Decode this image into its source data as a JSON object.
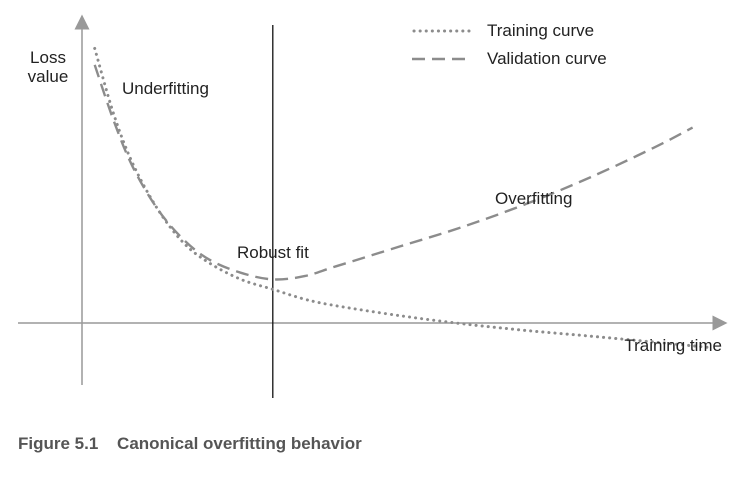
{
  "chart_data": {
    "type": "line",
    "title": "",
    "xlabel": "Training time",
    "ylabel": "Loss value",
    "x_range": [
      0,
      100
    ],
    "y_range": [
      -10,
      100
    ],
    "grid": false,
    "legend_position": "top-right",
    "series": [
      {
        "name": "Training curve",
        "style": "dotted",
        "color": "#8c8c8c",
        "x": [
          2,
          5,
          8,
          12,
          16,
          20,
          25,
          30,
          35,
          40,
          50,
          60,
          70,
          80,
          90,
          99
        ],
        "y": [
          92,
          72,
          57,
          43,
          33,
          27,
          22,
          19,
          16,
          14,
          11,
          8.5,
          6.5,
          4.8,
          3,
          1.3
        ]
      },
      {
        "name": "Validation curve",
        "style": "dashed",
        "color": "#8c8c8c",
        "x": [
          2,
          5,
          8,
          12,
          16,
          20,
          25,
          30,
          35,
          40,
          50,
          60,
          70,
          80,
          90,
          96
        ],
        "y": [
          87,
          70,
          56,
          43,
          34,
          28,
          24,
          22,
          23,
          26,
          32,
          38,
          45,
          53,
          62,
          68
        ]
      }
    ],
    "annotations": [
      "Underfitting",
      "Robust fit",
      "Overfitting"
    ],
    "robust_fit_x": 30
  },
  "caption": {
    "number": "Figure 5.1",
    "text": "Canonical overfitting behavior"
  }
}
